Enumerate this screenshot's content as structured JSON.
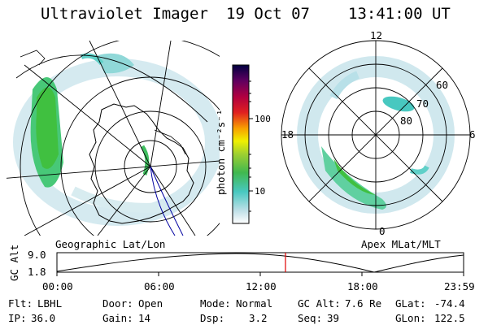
{
  "header": {
    "instrument": "Ultraviolet Imager",
    "date": "19 Oct 07",
    "time": "13:41:00 UT"
  },
  "colorbar": {
    "unit_label": "photon cm⁻²s⁻¹",
    "ticks": [
      "100",
      "10"
    ],
    "scale": "log"
  },
  "geo_panel": {
    "label": "Geographic Lat/Lon"
  },
  "polar_panel": {
    "label": "Apex MLat/MLT",
    "mlt_labels": {
      "top": "12",
      "right": "6",
      "bottom": "0",
      "left": "18"
    },
    "lat_labels": [
      "60",
      "70",
      "80"
    ]
  },
  "altitude_plot": {
    "ylabel": "GC Alt",
    "y_ticks": [
      "9.0",
      "1.8"
    ],
    "x_ticks": [
      "00:00",
      "06:00",
      "12:00",
      "18:00",
      "23:59"
    ],
    "current_time_marker": "13:41"
  },
  "status": {
    "row1": [
      {
        "label": "Flt:",
        "value": "LBHL"
      },
      {
        "label": "Door:",
        "value": "Open"
      },
      {
        "label": "Mode:",
        "value": "Normal"
      },
      {
        "label": "GC Alt:",
        "value": "7.6 Re"
      },
      {
        "label": "GLat:",
        "value": "-74.4"
      }
    ],
    "row2": [
      {
        "label": "IP:",
        "value": "36.0"
      },
      {
        "label": "Gain:",
        "value": "14"
      },
      {
        "label": "Dsp:",
        "value": "3.2"
      },
      {
        "label": "Seq:",
        "value": "39"
      },
      {
        "label": "GLon:",
        "value": "122.5"
      }
    ]
  },
  "colors": {
    "marker": "#e00000",
    "aurora_low": "#c8e8f0",
    "aurora_mid": "#60d0c8",
    "aurora_high": "#40c040"
  }
}
